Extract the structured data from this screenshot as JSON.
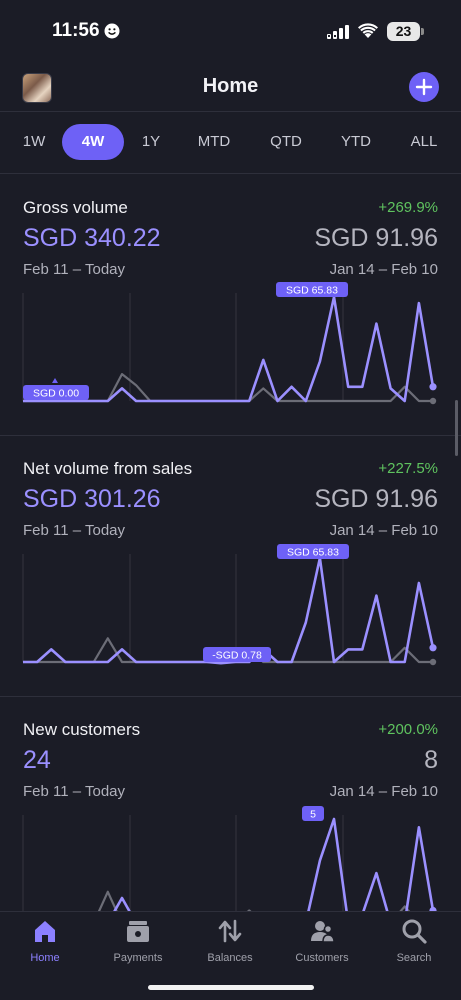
{
  "status_bar": {
    "time": "11:56",
    "battery": "23"
  },
  "header": {
    "title": "Home"
  },
  "tabs": [
    "1W",
    "4W",
    "1Y",
    "MTD",
    "QTD",
    "YTD",
    "ALL"
  ],
  "active_tab": "4W",
  "cards": [
    {
      "title": "Gross volume",
      "change": "+269.9%",
      "value": "SGD 340.22",
      "compare_value": "SGD 91.96",
      "range": "Feb 11 – Today",
      "compare_range": "Jan 14 – Feb 10",
      "tooltip_high": "SGD 65.83",
      "tooltip_low": "SGD 0.00"
    },
    {
      "title": "Net volume from sales",
      "change": "+227.5%",
      "value": "SGD 301.26",
      "compare_value": "SGD 91.96",
      "range": "Feb 11 – Today",
      "compare_range": "Jan 14 – Feb 10",
      "tooltip_high": "SGD 65.83",
      "tooltip_low": "-SGD 0.78"
    },
    {
      "title": "New customers",
      "change": "+200.0%",
      "value": "24",
      "compare_value": "8",
      "range": "Feb 11 – Today",
      "compare_range": "Jan 14 – Feb 10",
      "tooltip_high": "5"
    }
  ],
  "chart_data": [
    {
      "type": "line",
      "series": [
        {
          "values": [
            0,
            0,
            0,
            0,
            0,
            0,
            0,
            8,
            0,
            0,
            0,
            0,
            0,
            0,
            0,
            0,
            0,
            26,
            0,
            9,
            0,
            25,
            65.83,
            9,
            9,
            49,
            8,
            0,
            62,
            9
          ]
        },
        {
          "values": [
            0,
            0,
            0,
            0,
            0,
            0,
            0,
            17,
            10,
            0,
            0,
            0,
            0,
            0,
            0,
            0,
            0,
            8,
            0,
            0,
            0,
            0,
            0,
            0,
            0,
            0,
            0,
            9,
            0,
            0
          ]
        }
      ]
    },
    {
      "type": "line",
      "series": [
        {
          "values": [
            0,
            0,
            8,
            0,
            0,
            0,
            0,
            8,
            0,
            0,
            0,
            0,
            0,
            0,
            -0.78,
            0,
            0,
            8,
            0,
            0,
            25,
            65.83,
            0,
            8,
            8,
            42,
            0,
            0,
            50,
            9
          ]
        },
        {
          "values": [
            0,
            0,
            0,
            0,
            0,
            0,
            15,
            0,
            0,
            0,
            0,
            0,
            0,
            0,
            0,
            0,
            8,
            0,
            0,
            0,
            0,
            0,
            0,
            0,
            0,
            0,
            0,
            9,
            0,
            0
          ]
        }
      ]
    },
    {
      "type": "line",
      "series": [
        {
          "values": [
            0,
            0,
            0.4,
            0,
            0.4,
            0,
            0,
            1.2,
            0,
            0,
            0,
            0,
            0,
            0,
            0,
            0,
            0,
            0.4,
            0,
            0.4,
            0,
            3,
            5,
            0,
            0.4,
            2.4,
            0,
            0,
            4.6,
            0.6
          ]
        },
        {
          "values": [
            0,
            0,
            0,
            0,
            0,
            0,
            1.5,
            0,
            0,
            0,
            0,
            0,
            0,
            0,
            0,
            0,
            0.6,
            0,
            0,
            0,
            0,
            0,
            0,
            0,
            0,
            0,
            0,
            0.8,
            0,
            0
          ]
        }
      ]
    }
  ],
  "nav": [
    {
      "label": "Home",
      "icon": "home-icon"
    },
    {
      "label": "Payments",
      "icon": "wallet-icon"
    },
    {
      "label": "Balances",
      "icon": "transfer-arrows-icon"
    },
    {
      "label": "Customers",
      "icon": "people-icon"
    },
    {
      "label": "Search",
      "icon": "search-icon"
    }
  ],
  "colors": {
    "accent": "#6e61f6",
    "current_series": "#9b90ff",
    "previous_series": "#6c6d77",
    "positive": "#5fc35f"
  }
}
